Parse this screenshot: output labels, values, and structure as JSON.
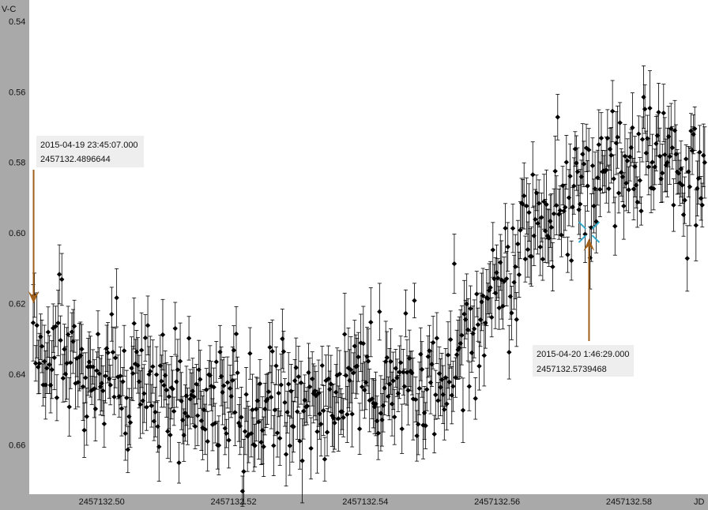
{
  "chart_data": {
    "type": "scatter",
    "xlabel": "JD",
    "ylabel": "V-C",
    "x_ticks": [
      2457132.5,
      2457132.52,
      2457132.54,
      2457132.56,
      2457132.58
    ],
    "x_tick_labels": [
      "2457132.50",
      "2457132.52",
      "2457132.54",
      "2457132.56",
      "2457132.58"
    ],
    "y_ticks": [
      0.54,
      0.56,
      0.58,
      0.6,
      0.62,
      0.64,
      0.66
    ],
    "y_tick_labels": [
      "0.54",
      "0.56",
      "0.58",
      "0.60",
      "0.62",
      "0.64",
      "0.66"
    ],
    "xlim": [
      2457132.489,
      2457132.592
    ],
    "ylim": [
      0.534,
      0.674
    ],
    "y_inverted": true,
    "grid": false,
    "error_bars": true,
    "colors": {
      "marker": "#000000",
      "annotation": "#a0601a",
      "crosshair": "#33aacc",
      "plot_bg": "#ffffff",
      "frame_bg": "#a9a9a9"
    },
    "annotations": [
      {
        "name": "start-marker",
        "date_text": "2015-04-19 23:45:07.000",
        "jd_text": "2457132.4896644",
        "x": 2457132.4896644,
        "y": 0.62
      },
      {
        "name": "cursor-marker",
        "date_text": "2015-04-20 1:46:29.000",
        "jd_text": "2457132.5739468",
        "x": 2457132.5739468,
        "y": 0.602
      }
    ],
    "series": [
      {
        "trend": [
          [
            2457132.4896,
            0.625
          ],
          [
            2457132.493,
            0.633
          ],
          [
            2457132.498,
            0.638
          ],
          [
            2457132.504,
            0.642
          ],
          [
            2457132.51,
            0.646
          ],
          [
            2457132.516,
            0.648
          ],
          [
            2457132.523,
            0.65
          ],
          [
            2457132.53,
            0.649
          ],
          [
            2457132.535,
            0.644
          ],
          [
            2457132.54,
            0.641
          ],
          [
            2457132.546,
            0.644
          ],
          [
            2457132.55,
            0.642
          ],
          [
            2457132.554,
            0.635
          ],
          [
            2457132.558,
            0.621
          ],
          [
            2457132.562,
            0.605
          ],
          [
            2457132.566,
            0.596
          ],
          [
            2457132.57,
            0.59
          ],
          [
            2457132.574,
            0.586
          ],
          [
            2457132.578,
            0.58
          ],
          [
            2457132.584,
            0.576
          ],
          [
            2457132.588,
            0.58
          ],
          [
            2457132.5915,
            0.586
          ]
        ],
        "count": 540,
        "scatter_sd": 0.0085,
        "error_bar_mean": 0.0075,
        "error_bar_sd": 0.0015,
        "seed": 20150420
      }
    ]
  }
}
